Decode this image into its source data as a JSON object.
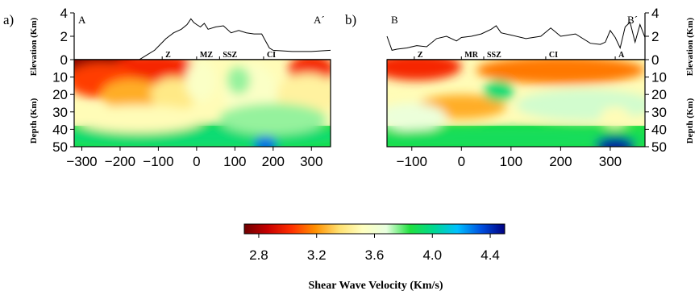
{
  "panels": [
    {
      "id": "a",
      "panel_label": "a)",
      "start_label": "A",
      "end_label": "A´",
      "x_ticks": [
        "−300",
        "−200",
        "−100",
        "0",
        "100",
        "200",
        "300"
      ],
      "zone_labels": [
        "Z",
        "MZ",
        "SSZ",
        "CI"
      ]
    },
    {
      "id": "b",
      "panel_label": "b)",
      "start_label": "B",
      "end_label": "B´",
      "x_ticks": [
        "−100",
        "0",
        "100",
        "200",
        "300"
      ],
      "zone_labels": [
        "Z",
        "MR",
        "SSZ",
        "CI",
        "A"
      ]
    }
  ],
  "elevation_axis": {
    "label": "Elevation (Km)",
    "ticks": [
      "0",
      "2",
      "4"
    ]
  },
  "depth_axis": {
    "label": "Depth (Km)",
    "ticks": [
      "0",
      "10",
      "20",
      "30",
      "40",
      "50"
    ]
  },
  "colorbar": {
    "title": "Shear Wave Velocity (Km/s)",
    "ticks": [
      "2.8",
      "3.2",
      "3.6",
      "4.0",
      "4.4"
    ],
    "colors": [
      "#6e0000",
      "#c80000",
      "#ff3000",
      "#ff9000",
      "#ffe070",
      "#ffffc0",
      "#e8ffe0",
      "#20e040",
      "#00d890",
      "#00c0ff",
      "#0050e0",
      "#000080"
    ]
  },
  "chart_data": [
    {
      "type": "heatmap",
      "title": "a)",
      "profile": [
        "A",
        "A´"
      ],
      "xlim": [
        -320,
        350
      ],
      "ylabel_top": "Elevation (Km)",
      "ylim_top": [
        0,
        4
      ],
      "ylabel_bottom": "Depth (Km)",
      "ylim_bottom": [
        50,
        0
      ],
      "topography": {
        "x": [
          -320,
          -150,
          -130,
          -110,
          -95,
          -80,
          -60,
          -40,
          -25,
          -15,
          -8,
          0,
          10,
          20,
          30,
          50,
          70,
          90,
          110,
          130,
          150,
          170,
          180,
          190,
          200,
          250,
          300,
          350
        ],
        "y": [
          0,
          0,
          0.4,
          0.8,
          1.3,
          1.8,
          2.3,
          2.6,
          3.0,
          3.5,
          3.2,
          3.0,
          2.8,
          3.1,
          2.6,
          2.8,
          2.9,
          2.3,
          2.5,
          2.3,
          2.2,
          2.2,
          1.6,
          1.0,
          0.8,
          0.7,
          0.7,
          0.8
        ]
      },
      "zones": [
        {
          "label": "Z",
          "x": -90
        },
        {
          "label": "MZ",
          "x": 0
        },
        {
          "label": "SSZ",
          "x": 60
        },
        {
          "label": "CI",
          "x": 175
        }
      ],
      "velocity_blobs": [
        {
          "x": -250,
          "depth": 2,
          "rx": 110,
          "ry": 10,
          "value": 2.75
        },
        {
          "x": -110,
          "depth": 5,
          "rx": 110,
          "ry": 9,
          "value": 3.0
        },
        {
          "x": -250,
          "depth": 12,
          "rx": 90,
          "ry": 10,
          "value": 3.05
        },
        {
          "x": -170,
          "depth": 20,
          "rx": 80,
          "ry": 9,
          "value": 3.25
        },
        {
          "x": -60,
          "depth": 20,
          "rx": 60,
          "ry": 10,
          "value": 3.4
        },
        {
          "x": 10,
          "depth": 12,
          "rx": 40,
          "ry": 12,
          "value": 3.55
        },
        {
          "x": 140,
          "depth": 18,
          "rx": 70,
          "ry": 16,
          "value": 3.55
        },
        {
          "x": 110,
          "depth": 12,
          "rx": 30,
          "ry": 8,
          "value": 3.75
        },
        {
          "x": 300,
          "depth": 6,
          "rx": 60,
          "ry": 9,
          "value": 3.0
        },
        {
          "x": 290,
          "depth": 20,
          "rx": 80,
          "ry": 12,
          "value": 3.45
        },
        {
          "x": 0,
          "depth": 44,
          "rx": 400,
          "ry": 7,
          "value": 3.95
        },
        {
          "x": 180,
          "depth": 49,
          "rx": 30,
          "ry": 5,
          "value": 4.3
        },
        {
          "x": -150,
          "depth": 34,
          "rx": 170,
          "ry": 8,
          "value": 3.5
        },
        {
          "x": 200,
          "depth": 34,
          "rx": 140,
          "ry": 9,
          "value": 3.75
        }
      ]
    },
    {
      "type": "heatmap",
      "title": "b)",
      "profile": [
        "B",
        "B´"
      ],
      "xlim": [
        -150,
        370
      ],
      "ylabel_top": "Elevation (Km)",
      "ylim_top": [
        0,
        4
      ],
      "ylabel_bottom": "Depth (Km)",
      "ylim_bottom": [
        50,
        0
      ],
      "topography": {
        "x": [
          -150,
          -140,
          -130,
          -110,
          -90,
          -70,
          -50,
          -30,
          -10,
          0,
          20,
          40,
          60,
          70,
          80,
          100,
          130,
          160,
          180,
          200,
          230,
          260,
          280,
          290,
          300,
          310,
          320,
          330,
          340,
          350,
          360,
          370
        ],
        "y": [
          2.0,
          0.8,
          0.9,
          1.0,
          1.2,
          1.1,
          1.8,
          2.0,
          1.6,
          1.9,
          2.0,
          2.2,
          2.6,
          2.9,
          2.3,
          2.1,
          1.8,
          2.0,
          2.7,
          2.0,
          2.2,
          1.4,
          1.3,
          1.5,
          2.5,
          1.9,
          1.0,
          2.8,
          3.2,
          1.5,
          3.0,
          1.9
        ]
      },
      "zones": [
        {
          "label": "Z",
          "x": -95
        },
        {
          "label": "MR",
          "x": 0
        },
        {
          "label": "SSZ",
          "x": 45
        },
        {
          "label": "CI",
          "x": 170
        },
        {
          "label": "A",
          "x": 310
        }
      ],
      "velocity_blobs": [
        {
          "x": -90,
          "depth": 4,
          "rx": 90,
          "ry": 8,
          "value": 3.0
        },
        {
          "x": 200,
          "depth": 6,
          "rx": 170,
          "ry": 8,
          "value": 3.15
        },
        {
          "x": 0,
          "depth": 27,
          "rx": 90,
          "ry": 7,
          "value": 3.25
        },
        {
          "x": 75,
          "depth": 18,
          "rx": 30,
          "ry": 6,
          "value": 3.95
        },
        {
          "x": -100,
          "depth": 33,
          "rx": 70,
          "ry": 8,
          "value": 3.65
        },
        {
          "x": 250,
          "depth": 26,
          "rx": 140,
          "ry": 9,
          "value": 3.7
        },
        {
          "x": 310,
          "depth": 33,
          "rx": 30,
          "ry": 6,
          "value": 3.5
        },
        {
          "x": 100,
          "depth": 45,
          "rx": 300,
          "ry": 6,
          "value": 3.9
        },
        {
          "x": 310,
          "depth": 49,
          "rx": 40,
          "ry": 5,
          "value": 4.45
        }
      ]
    }
  ]
}
